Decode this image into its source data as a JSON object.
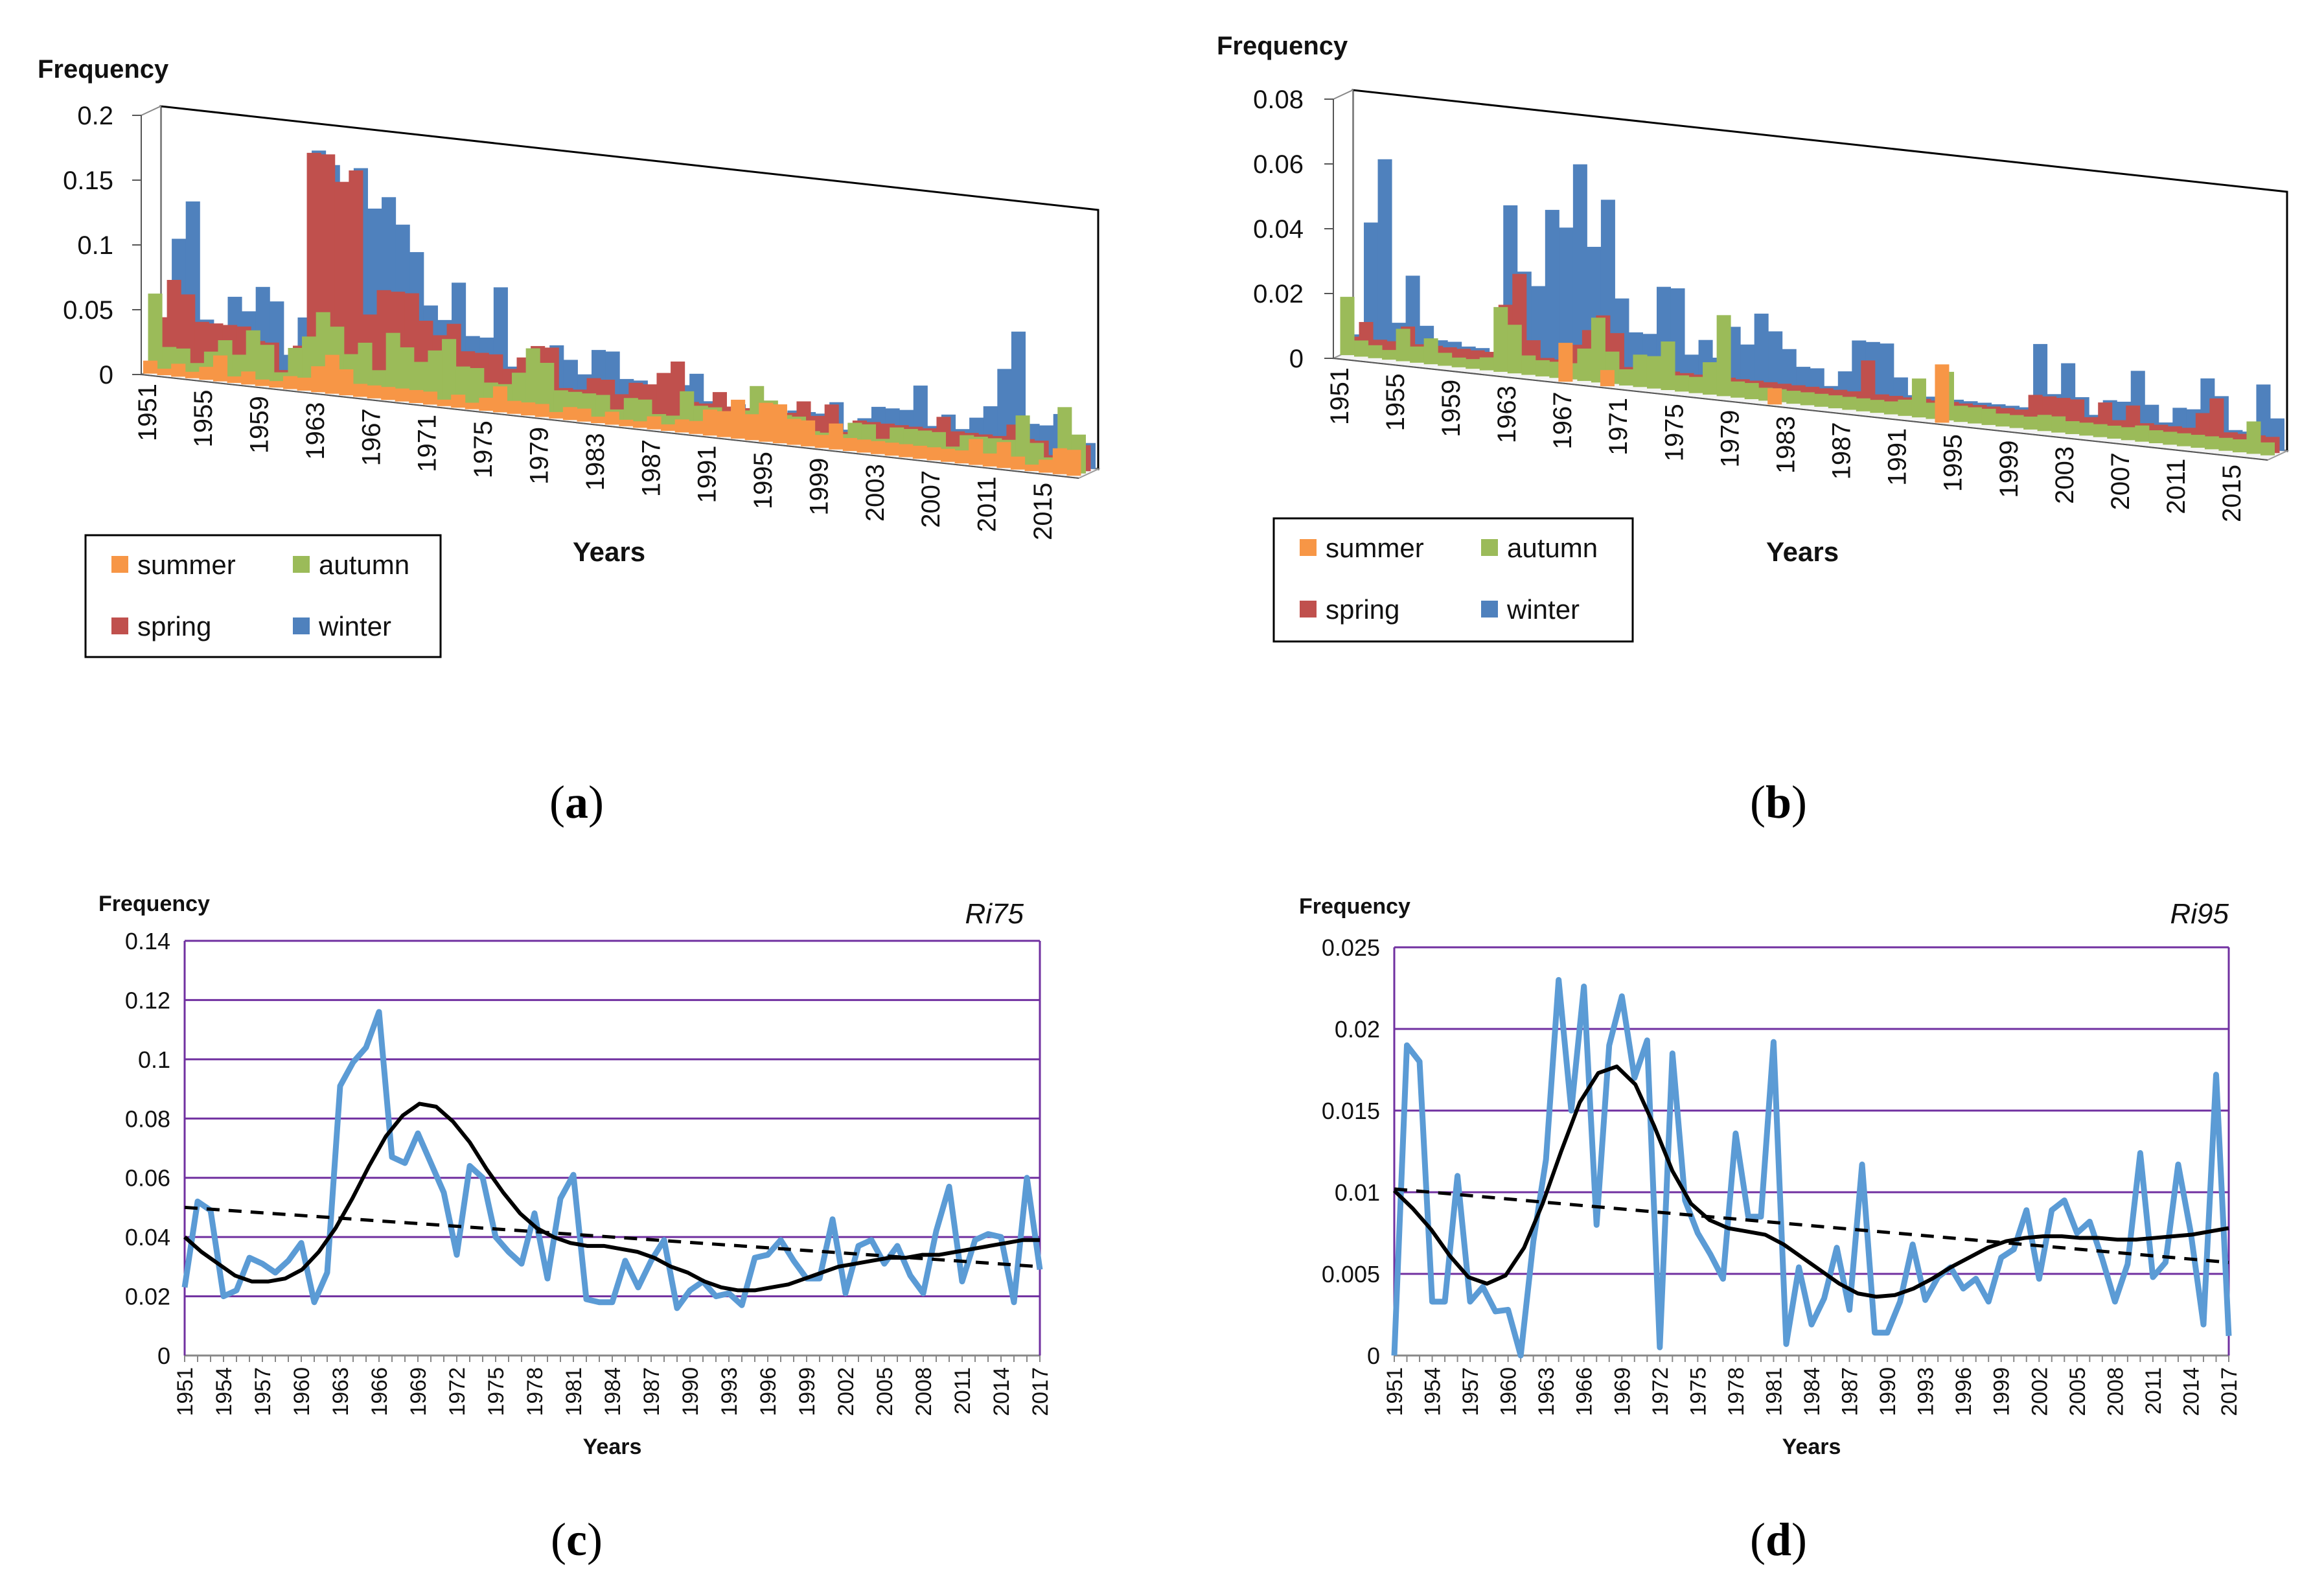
{
  "panels": [
    {
      "id": "a",
      "caption_letter": "a",
      "title": "",
      "ylabel": "Frequency",
      "xlabel": "Years"
    },
    {
      "id": "b",
      "caption_letter": "b",
      "title": "",
      "ylabel": "Frequency",
      "xlabel": "Years"
    },
    {
      "id": "c",
      "caption_letter": "c",
      "title": "Ri75",
      "ylabel": "Frequency",
      "xlabel": "Years"
    },
    {
      "id": "d",
      "caption_letter": "d",
      "title": "Ri95",
      "ylabel": "Frequency",
      "xlabel": "Years"
    }
  ],
  "colors": {
    "summer": "#f79646",
    "autumn": "#9bbb59",
    "spring": "#c0504d",
    "winter": "#4f81bd",
    "line": "#5b9bd5",
    "trend": "#000000",
    "grid": "#7030a0"
  },
  "chart_data": [
    {
      "id": "a",
      "type": "bar",
      "subtype": "3d-stacked-depth",
      "title": "",
      "xlabel": "Years",
      "ylabel": "Frequency",
      "ylim": [
        0,
        0.2
      ],
      "yticks": [
        "0",
        "0.05",
        "0.1",
        "0.15",
        "0.2"
      ],
      "xticks": [
        "1951",
        "1955",
        "1959",
        "1963",
        "1967",
        "1971",
        "1975",
        "1979",
        "1983",
        "1987",
        "1991",
        "1995",
        "1999",
        "2003",
        "2007",
        "2011",
        "2015"
      ],
      "legend": [
        "summer",
        "autumn",
        "spring",
        "winter"
      ],
      "x_start": 1951,
      "x_end": 2017,
      "series": [
        {
          "name": "winter",
          "values": [
            0.01,
            0.1,
            0.13,
            0.04,
            0.03,
            0.06,
            0.05,
            0.07,
            0.06,
            0.02,
            0.05,
            0.18,
            0.17,
            0.12,
            0.17,
            0.14,
            0.15,
            0.13,
            0.11,
            0.07,
            0.06,
            0.09,
            0.05,
            0.05,
            0.09,
            0.03,
            0.03,
            0.03,
            0.05,
            0.04,
            0.03,
            0.05,
            0.05,
            0.03,
            0.03,
            0.01,
            0.02,
            0.03,
            0.04,
            0.02,
            0.01,
            0.02,
            0.01,
            0.02,
            0.01,
            0.02,
            0.02,
            0.02,
            0.03,
            0.01,
            0.02,
            0.03,
            0.03,
            0.03,
            0.05,
            0.02,
            0.03,
            0.02,
            0.03,
            0.04,
            0.07,
            0.1,
            0.03,
            0.03,
            0.04,
            0.01,
            0.02
          ]
        },
        {
          "name": "spring",
          "values": [
            0.04,
            0.07,
            0.06,
            0.04,
            0.04,
            0.04,
            0.04,
            0.03,
            0.03,
            0.01,
            0.03,
            0.18,
            0.18,
            0.16,
            0.17,
            0.06,
            0.08,
            0.08,
            0.08,
            0.06,
            0.05,
            0.06,
            0.04,
            0.04,
            0.04,
            0.03,
            0.04,
            0.05,
            0.05,
            0.02,
            0.02,
            0.03,
            0.03,
            0.02,
            0.03,
            0.03,
            0.04,
            0.05,
            0.02,
            0.02,
            0.03,
            0.02,
            0.02,
            0.02,
            0.01,
            0.02,
            0.03,
            0.02,
            0.03,
            0.01,
            0.02,
            0.02,
            0.02,
            0.02,
            0.02,
            0.02,
            0.03,
            0.02,
            0.02,
            0.02,
            0.02,
            0.03,
            0.02,
            0.02,
            0.01,
            0.01,
            0.02
          ]
        },
        {
          "name": "autumn",
          "values": [
            0.06,
            0.02,
            0.02,
            0.01,
            0.02,
            0.03,
            0.02,
            0.04,
            0.03,
            0.01,
            0.03,
            0.04,
            0.06,
            0.05,
            0.03,
            0.04,
            0.02,
            0.05,
            0.04,
            0.03,
            0.04,
            0.05,
            0.03,
            0.03,
            0.02,
            0.02,
            0.03,
            0.05,
            0.04,
            0.02,
            0.02,
            0.02,
            0.02,
            0.01,
            0.02,
            0.02,
            0.01,
            0.01,
            0.03,
            0.02,
            0.02,
            0.01,
            0.02,
            0.04,
            0.03,
            0.02,
            0.02,
            0.01,
            0.01,
            0.01,
            0.02,
            0.02,
            0.01,
            0.02,
            0.02,
            0.02,
            0.02,
            0.01,
            0.02,
            0.02,
            0.02,
            0.02,
            0.04,
            0.02,
            0.01,
            0.05,
            0.03
          ]
        },
        {
          "name": "summer",
          "values": [
            0.01,
            0.005,
            0.01,
            0.005,
            0.01,
            0.02,
            0.005,
            0.01,
            0.005,
            0.005,
            0.01,
            0.01,
            0.02,
            0.03,
            0.02,
            0.01,
            0.01,
            0.01,
            0.01,
            0.01,
            0.01,
            0.005,
            0.01,
            0.005,
            0.01,
            0.02,
            0.01,
            0.01,
            0.01,
            0.005,
            0.01,
            0.01,
            0.005,
            0.01,
            0.005,
            0.005,
            0.01,
            0.005,
            0.01,
            0.01,
            0.02,
            0.02,
            0.03,
            0.02,
            0.03,
            0.03,
            0.02,
            0.02,
            0.01,
            0.02,
            0.01,
            0.01,
            0.01,
            0.01,
            0.01,
            0.01,
            0.01,
            0.01,
            0.01,
            0.02,
            0.01,
            0.02,
            0.01,
            0.005,
            0.01,
            0.02,
            0.02
          ]
        }
      ]
    },
    {
      "id": "b",
      "type": "bar",
      "subtype": "3d-stacked-depth",
      "title": "",
      "xlabel": "Years",
      "ylabel": "Frequency",
      "ylim": [
        0,
        0.08
      ],
      "yticks": [
        "0",
        "0.02",
        "0.04",
        "0.06",
        "0.08"
      ],
      "xticks": [
        "1951",
        "1955",
        "1959",
        "1963",
        "1967",
        "1971",
        "1975",
        "1979",
        "1983",
        "1987",
        "1991",
        "1995",
        "1999",
        "2003",
        "2007",
        "2011",
        "2015"
      ],
      "legend": [
        "summer",
        "autumn",
        "spring",
        "winter"
      ],
      "x_start": 1951,
      "x_end": 2017,
      "series": [
        {
          "name": "winter",
          "values": [
            0.005,
            0.04,
            0.06,
            0.01,
            0.025,
            0.01,
            0.006,
            0.006,
            0.005,
            0.005,
            0.004,
            0.05,
            0.03,
            0.026,
            0.05,
            0.045,
            0.065,
            0.04,
            0.055,
            0.025,
            0.015,
            0.015,
            0.03,
            0.03,
            0.01,
            0.015,
            0.01,
            0.02,
            0.015,
            0.025,
            0.02,
            0.015,
            0.01,
            0.01,
            0.005,
            0.01,
            0.02,
            0.02,
            0.02,
            0.01,
            0.005,
            0.005,
            0.01,
            0.005,
            0.005,
            0.005,
            0.005,
            0.005,
            0.005,
            0.025,
            0.01,
            0.02,
            0.01,
            0.005,
            0.01,
            0.01,
            0.02,
            0.01,
            0.005,
            0.01,
            0.01,
            0.02,
            0.015,
            0.005,
            0.005,
            0.02,
            0.01
          ]
        },
        {
          "name": "spring",
          "values": [
            0.005,
            0.01,
            0.005,
            0.005,
            0.01,
            0.005,
            0.005,
            0.005,
            0.005,
            0.005,
            0.005,
            0.02,
            0.03,
            0.01,
            0.005,
            0.005,
            0.01,
            0.015,
            0.02,
            0.015,
            0.005,
            0.005,
            0.005,
            0.005,
            0.005,
            0.005,
            0.005,
            0.005,
            0.005,
            0.005,
            0.005,
            0.005,
            0.005,
            0.005,
            0.005,
            0.005,
            0.005,
            0.015,
            0.005,
            0.005,
            0.005,
            0.005,
            0.005,
            0.005,
            0.005,
            0.005,
            0.005,
            0.005,
            0.005,
            0.01,
            0.01,
            0.01,
            0.01,
            0.005,
            0.01,
            0.005,
            0.01,
            0.005,
            0.005,
            0.005,
            0.005,
            0.01,
            0.015,
            0.005,
            0.005,
            0.005,
            0.005
          ]
        },
        {
          "name": "autumn",
          "values": [
            0.018,
            0.005,
            0.004,
            0.003,
            0.01,
            0.005,
            0.008,
            0.004,
            0.003,
            0.003,
            0.004,
            0.02,
            0.015,
            0.006,
            0.005,
            0.005,
            0.005,
            0.01,
            0.02,
            0.01,
            0.005,
            0.01,
            0.01,
            0.015,
            0.005,
            0.005,
            0.01,
            0.025,
            0.005,
            0.005,
            0.004,
            0.004,
            0.004,
            0.004,
            0.004,
            0.004,
            0.004,
            0.004,
            0.004,
            0.004,
            0.005,
            0.012,
            0.005,
            0.015,
            0.005,
            0.005,
            0.005,
            0.004,
            0.004,
            0.004,
            0.005,
            0.005,
            0.004,
            0.004,
            0.004,
            0.004,
            0.004,
            0.005,
            0.004,
            0.004,
            0.004,
            0.004,
            0.004,
            0.004,
            0.004,
            0.01,
            0.004
          ]
        },
        {
          "name": "summer",
          "values": [
            0,
            0,
            0,
            0,
            0,
            0,
            0,
            0,
            0,
            0,
            0,
            0,
            0,
            0,
            0,
            0,
            0.012,
            0,
            0,
            0.005,
            0,
            0,
            0,
            0,
            0,
            0,
            0,
            0,
            0,
            0,
            0,
            0.005,
            0,
            0,
            0,
            0,
            0,
            0,
            0,
            0,
            0,
            0,
            0,
            0.018,
            0,
            0,
            0,
            0,
            0,
            0,
            0,
            0,
            0,
            0,
            0,
            0,
            0,
            0,
            0,
            0,
            0,
            0,
            0,
            0,
            0,
            0,
            0
          ]
        }
      ]
    },
    {
      "id": "c",
      "type": "line",
      "title": "Ri75",
      "xlabel": "Years",
      "ylabel": "Frequency",
      "ylim": [
        0,
        0.14
      ],
      "yticks": [
        "0",
        "0.02",
        "0.04",
        "0.06",
        "0.08",
        "0.1",
        "0.12",
        "0.14"
      ],
      "xticks": [
        "1951",
        "1954",
        "1957",
        "1960",
        "1963",
        "1966",
        "1969",
        "1972",
        "1975",
        "1978",
        "1981",
        "1984",
        "1987",
        "1990",
        "1993",
        "1996",
        "1999",
        "2002",
        "2005",
        "2008",
        "2011",
        "2014",
        "2017"
      ],
      "x_start": 1951,
      "x_end": 2017,
      "series": [
        {
          "name": "Ri75",
          "values": [
            0.023,
            0.052,
            0.049,
            0.02,
            0.022,
            0.033,
            0.031,
            0.028,
            0.032,
            0.038,
            0.018,
            0.028,
            0.091,
            0.099,
            0.104,
            0.116,
            0.067,
            0.065,
            0.075,
            0.065,
            0.055,
            0.034,
            0.064,
            0.06,
            0.04,
            0.035,
            0.031,
            0.048,
            0.026,
            0.053,
            0.061,
            0.019,
            0.018,
            0.018,
            0.032,
            0.023,
            0.032,
            0.039,
            0.016,
            0.022,
            0.025,
            0.02,
            0.021,
            0.017,
            0.033,
            0.034,
            0.039,
            0.032,
            0.026,
            0.026,
            0.046,
            0.021,
            0.037,
            0.039,
            0.031,
            0.037,
            0.027,
            0.021,
            0.042,
            0.057,
            0.025,
            0.039,
            0.041,
            0.04,
            0.018,
            0.06,
            0.029
          ]
        },
        {
          "name": "smoothed",
          "values": [
            0.04,
            0.035,
            0.031,
            0.027,
            0.025,
            0.025,
            0.026,
            0.029,
            0.035,
            0.043,
            0.053,
            0.064,
            0.074,
            0.081,
            0.085,
            0.084,
            0.079,
            0.072,
            0.063,
            0.055,
            0.048,
            0.043,
            0.04,
            0.038,
            0.037,
            0.037,
            0.036,
            0.035,
            0.033,
            0.03,
            0.028,
            0.025,
            0.023,
            0.022,
            0.022,
            0.023,
            0.024,
            0.026,
            0.028,
            0.03,
            0.031,
            0.032,
            0.033,
            0.033,
            0.034,
            0.034,
            0.035,
            0.036,
            0.037,
            0.038,
            0.039,
            0.039
          ]
        },
        {
          "name": "trend",
          "values": [
            0.05,
            0.03
          ]
        }
      ]
    },
    {
      "id": "d",
      "type": "line",
      "title": "Ri95",
      "xlabel": "Years",
      "ylabel": "Frequency",
      "ylim": [
        0,
        0.025
      ],
      "yticks": [
        "0",
        "0.005",
        "0.01",
        "0.015",
        "0.02",
        "0.025"
      ],
      "xticks": [
        "1951",
        "1954",
        "1957",
        "1960",
        "1963",
        "1966",
        "1969",
        "1972",
        "1975",
        "1978",
        "1981",
        "1984",
        "1987",
        "1990",
        "1993",
        "1996",
        "1999",
        "2002",
        "2005",
        "2008",
        "2011",
        "2014",
        "2017"
      ],
      "x_start": 1951,
      "x_end": 2017,
      "series": [
        {
          "name": "Ri95",
          "values": [
            0,
            0.019,
            0.018,
            0.0033,
            0.0033,
            0.011,
            0.0033,
            0.0042,
            0.0027,
            0.0028,
            0,
            0.007,
            0.012,
            0.023,
            0.015,
            0.0226,
            0.008,
            0.019,
            0.022,
            0.017,
            0.0193,
            0.0005,
            0.0185,
            0.0095,
            0.0075,
            0.0062,
            0.0047,
            0.0136,
            0.0085,
            0.0085,
            0.0192,
            0.0007,
            0.0054,
            0.0019,
            0.0035,
            0.0066,
            0.0028,
            0.0117,
            0.0014,
            0.0014,
            0.0033,
            0.0068,
            0.0034,
            0.0048,
            0.0054,
            0.0041,
            0.0047,
            0.0033,
            0.006,
            0.0065,
            0.0089,
            0.0047,
            0.0089,
            0.0095,
            0.0075,
            0.0082,
            0.0059,
            0.0033,
            0.0056,
            0.0124,
            0.0048,
            0.0057,
            0.0117,
            0.0075,
            0.0019,
            0.0172,
            0.0012
          ]
        },
        {
          "name": "smoothed",
          "values": [
            0.0101,
            0.009,
            0.0077,
            0.0061,
            0.0048,
            0.0044,
            0.0049,
            0.0066,
            0.0093,
            0.0125,
            0.0155,
            0.0173,
            0.0177,
            0.0166,
            0.0141,
            0.0113,
            0.0093,
            0.0083,
            0.0078,
            0.0076,
            0.0074,
            0.0068,
            0.006,
            0.0052,
            0.0044,
            0.0038,
            0.0036,
            0.0037,
            0.0041,
            0.0047,
            0.0054,
            0.006,
            0.0066,
            0.007,
            0.0072,
            0.0073,
            0.0073,
            0.0072,
            0.0072,
            0.0071,
            0.0071,
            0.0072,
            0.0073,
            0.0074,
            0.0076,
            0.0078
          ]
        },
        {
          "name": "trend",
          "values": [
            0.0102,
            0.0057
          ]
        }
      ]
    }
  ]
}
